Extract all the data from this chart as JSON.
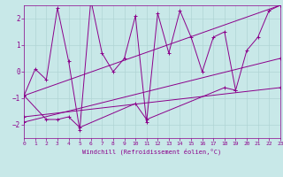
{
  "xlabel": "Windchill (Refroidissement éolien,°C)",
  "bg_color": "#c8e8e8",
  "line_color": "#8b008b",
  "grid_color": "#b0d4d4",
  "xlim": [
    0,
    23
  ],
  "ylim": [
    -2.5,
    2.5
  ],
  "yticks": [
    -2,
    -1,
    0,
    1,
    2
  ],
  "xticks": [
    0,
    1,
    2,
    3,
    4,
    5,
    6,
    7,
    8,
    9,
    10,
    11,
    12,
    13,
    14,
    15,
    16,
    17,
    18,
    19,
    20,
    21,
    22,
    23
  ],
  "series": [
    {
      "x": [
        0,
        1,
        2,
        3,
        4,
        5,
        6,
        7,
        8,
        9,
        10,
        11,
        12,
        13,
        14,
        15,
        16,
        17,
        18,
        19,
        20,
        21,
        22,
        23
      ],
      "y": [
        -0.9,
        0.1,
        -0.3,
        2.4,
        0.4,
        -2.2,
        2.7,
        0.7,
        0.0,
        0.5,
        2.1,
        -1.9,
        2.2,
        0.7,
        2.3,
        1.3,
        0.0,
        1.3,
        1.5,
        -0.7,
        0.8,
        1.3,
        2.3,
        2.5
      ]
    },
    {
      "x": [
        0,
        2,
        3,
        4,
        5,
        10,
        11,
        18,
        19
      ],
      "y": [
        -0.9,
        -1.8,
        -1.8,
        -1.7,
        -2.1,
        -1.2,
        -1.8,
        -0.6,
        -0.7
      ]
    },
    {
      "x": [
        0,
        23
      ],
      "y": [
        -0.9,
        2.5
      ]
    },
    {
      "x": [
        0,
        23
      ],
      "y": [
        -1.7,
        -0.6
      ]
    },
    {
      "x": [
        0,
        23
      ],
      "y": [
        -1.9,
        0.5
      ]
    }
  ]
}
